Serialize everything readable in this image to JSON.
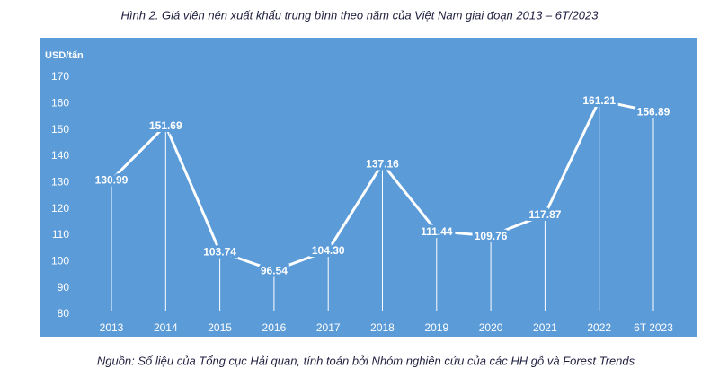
{
  "chart_data": {
    "type": "line",
    "title": "Hình 2. Giá viên nén xuất khẩu trung bình theo năm của Việt Nam giai đoạn 2013 – 6T/2023",
    "y_label": "USD/tấn",
    "source": "Nguồn: Số liệu của Tổng cục Hải quan, tính toán bởi Nhóm nghiên cứu của các HH gỗ và Forest Trends",
    "categories": [
      "2013",
      "2014",
      "2015",
      "2016",
      "2017",
      "2018",
      "2019",
      "2020",
      "2021",
      "2022",
      "6T 2023"
    ],
    "values": [
      130.99,
      151.69,
      103.74,
      96.54,
      104.3,
      137.16,
      111.44,
      109.76,
      117.87,
      161.21,
      156.89
    ],
    "value_labels": [
      "130.99",
      "151.69",
      "103.74",
      "96.54",
      "104.30",
      "137.16",
      "111.44",
      "109.76",
      "117.87",
      "161.21",
      "156.89"
    ],
    "color": "#ffffff",
    "background": "#5b9bd8",
    "ylim": [
      80,
      170
    ],
    "yticks": [
      80,
      90,
      100,
      110,
      120,
      130,
      140,
      150,
      160,
      170
    ]
  }
}
